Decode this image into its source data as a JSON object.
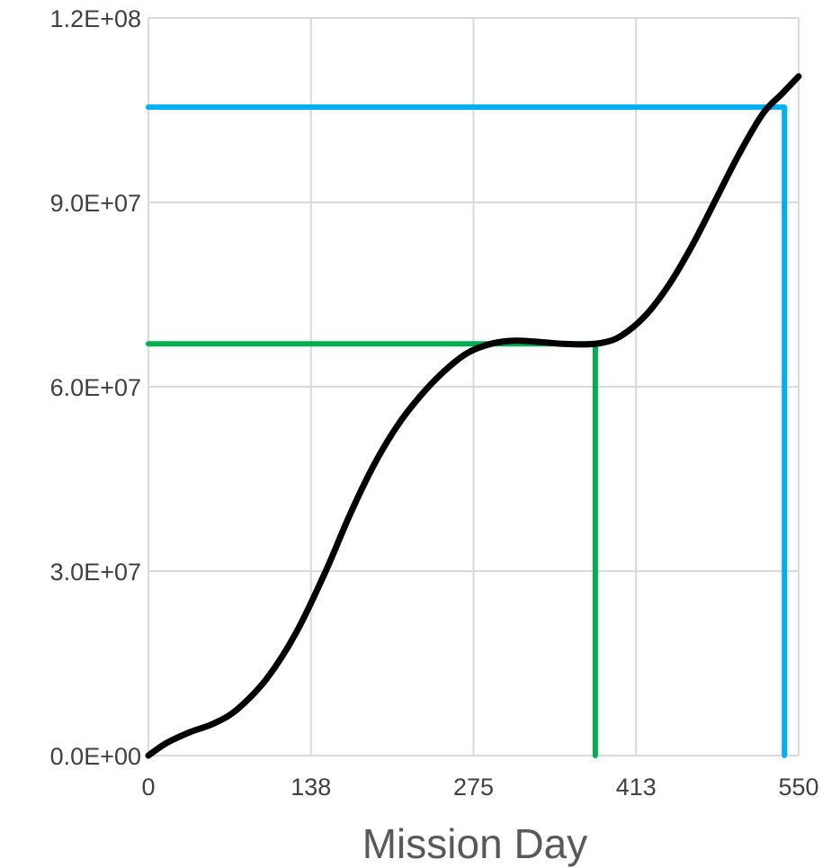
{
  "chart_data": {
    "type": "line",
    "title": "",
    "xlabel": "Mission Day",
    "ylabel": "",
    "xlim": [
      0,
      550
    ],
    "ylim": [
      0,
      120000000
    ],
    "x_ticks": [
      "0",
      "138",
      "275",
      "413",
      "550"
    ],
    "y_ticks": [
      "0.0E+00",
      "3.0E+07",
      "6.0E+07",
      "9.0E+07",
      "1.2E+08"
    ],
    "grid": true,
    "legend": "none",
    "series": [
      {
        "color": "#000000",
        "x": [
          0,
          15,
          35,
          55,
          75,
          100,
          125,
          150,
          170,
          190,
          210,
          230,
          250,
          270,
          290,
          310,
          330,
          350,
          370,
          385,
          400,
          420,
          440,
          460,
          480,
          500,
          520,
          535,
          545,
          550
        ],
        "y": [
          0,
          2000000,
          3800000,
          5200000,
          7500000,
          12500000,
          20000000,
          30000000,
          39000000,
          47000000,
          53500000,
          58500000,
          62500000,
          65500000,
          67000000,
          67500000,
          67300000,
          67000000,
          66900000,
          67200000,
          68300000,
          71500000,
          76500000,
          83000000,
          90500000,
          98000000,
          104500000,
          107500000,
          109500000,
          110500000
        ]
      },
      {
        "color": "#00b050",
        "x": [
          0,
          378,
          378
        ],
        "y": [
          67000000,
          67000000,
          0
        ]
      },
      {
        "color": "#00b0f0",
        "x": [
          0,
          538,
          538
        ],
        "y": [
          105500000,
          105500000,
          0
        ]
      }
    ]
  }
}
